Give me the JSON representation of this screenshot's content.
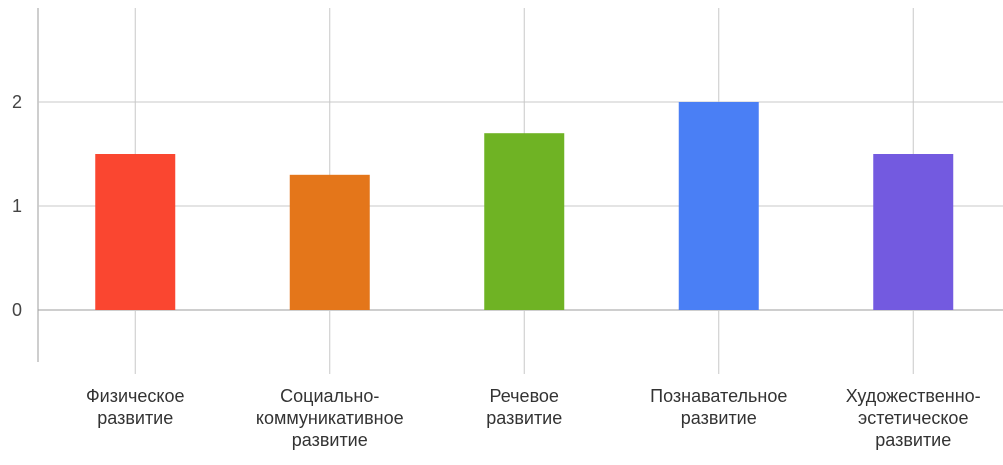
{
  "chart_data": {
    "type": "bar",
    "categories": [
      [
        "Физическое",
        "развитие"
      ],
      [
        "Социально-",
        "коммуникативное",
        "развитие"
      ],
      [
        "Речевое",
        "развитие"
      ],
      [
        "Познавательное",
        "развитие"
      ],
      [
        "Художественно-",
        "эстетическое",
        "развитие"
      ]
    ],
    "values": [
      1.5,
      1.3,
      1.7,
      2.0,
      1.5
    ],
    "colors": [
      "#fa4630",
      "#e4761a",
      "#6fb324",
      "#4a7ff5",
      "#735ae0"
    ],
    "y_ticks": [
      0,
      1,
      2
    ],
    "ylim": [
      -0.5,
      2.9
    ],
    "grid": true,
    "gridline_color": "#c8c8c8",
    "axis_line_color": "#9e9e9e",
    "title": "",
    "xlabel": "",
    "ylabel": ""
  }
}
